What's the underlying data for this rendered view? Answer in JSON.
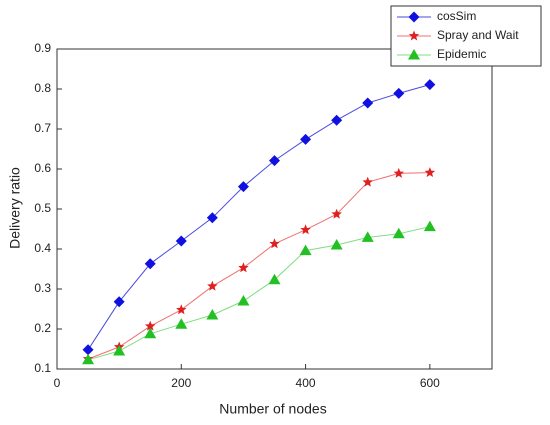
{
  "chart_data": {
    "type": "line",
    "x_label": "Number of nodes",
    "y_label": "Delivery ratio",
    "x": [
      50,
      100,
      150,
      200,
      250,
      300,
      350,
      400,
      450,
      500,
      550,
      600
    ],
    "series": [
      {
        "name": "cosSim",
        "color": "#1010e0",
        "line_color": "#4a4ae0",
        "marker": "diamond",
        "values": [
          0.148,
          0.268,
          0.363,
          0.42,
          0.478,
          0.556,
          0.621,
          0.674,
          0.722,
          0.765,
          0.789,
          0.811
        ]
      },
      {
        "name": "Spray and Wait",
        "color": "#e02020",
        "line_color": "#f07070",
        "marker": "star",
        "values": [
          0.125,
          0.155,
          0.207,
          0.248,
          0.307,
          0.353,
          0.413,
          0.448,
          0.487,
          0.567,
          0.589,
          0.591
        ]
      },
      {
        "name": "Epidemic",
        "color": "#22c022",
        "line_color": "#80dd80",
        "marker": "triangle",
        "values": [
          0.123,
          0.145,
          0.188,
          0.212,
          0.235,
          0.27,
          0.323,
          0.396,
          0.41,
          0.429,
          0.438,
          0.456
        ]
      }
    ],
    "xlim": [
      0,
      700
    ],
    "xticks": [
      0,
      200,
      400,
      600
    ],
    "ylim": [
      0.1,
      0.9
    ],
    "yticks": [
      0.1,
      0.2,
      0.3,
      0.4,
      0.5,
      0.6,
      0.7,
      0.8,
      0.9
    ],
    "legend": "upper-right"
  }
}
